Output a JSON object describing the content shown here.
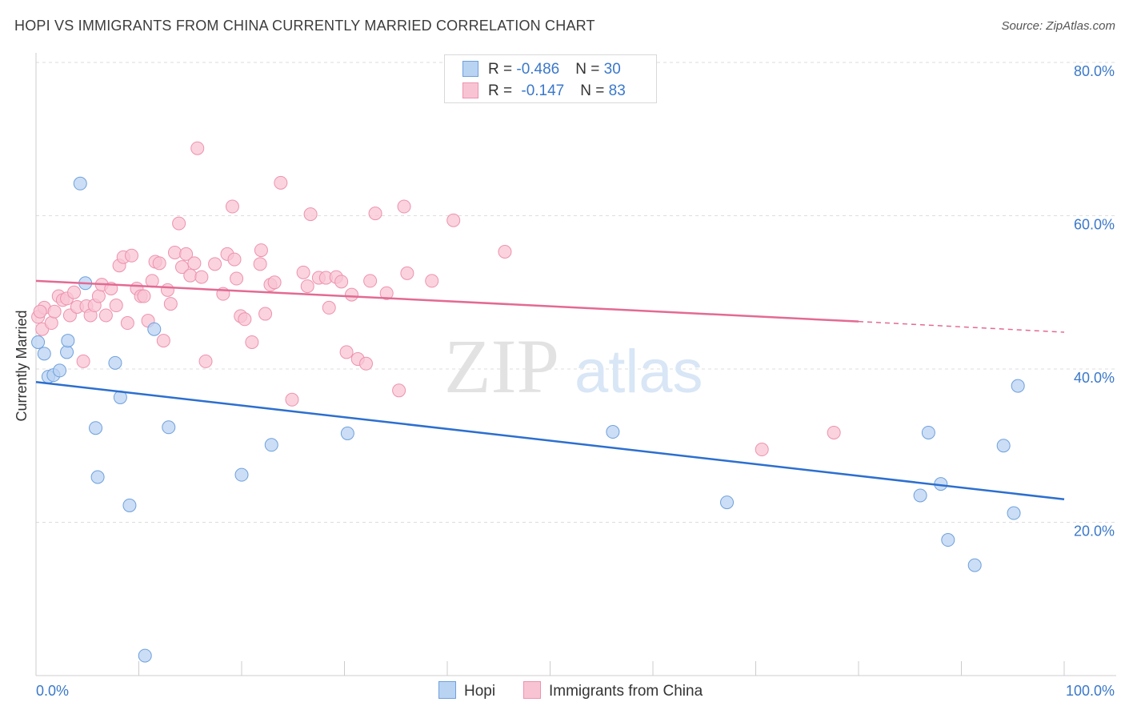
{
  "title": "HOPI VS IMMIGRANTS FROM CHINA CURRENTLY MARRIED CORRELATION CHART",
  "source": "Source: ZipAtlas.com",
  "watermark": {
    "zip": "ZIP",
    "atlas": "atlas"
  },
  "legend": {
    "rows": [
      {
        "r_label": "R = ",
        "r_value": "-0.486",
        "n_label": "N = ",
        "n_value": "30"
      },
      {
        "r_label": "R = ",
        "r_value": "-0.147",
        "n_label": "N = ",
        "n_value": "83"
      }
    ]
  },
  "bottom_legend": {
    "hopi": "Hopi",
    "china": "Immigrants from China"
  },
  "colors": {
    "hopi_fill": "#b9d3f3",
    "hopi_stroke": "#6fa0dc",
    "hopi_line": "#2c6fcf",
    "china_fill": "#f8c4d4",
    "china_stroke": "#ee92ad",
    "china_line": "#e36a93",
    "tick": "#3a78c9",
    "grid": "#dddddd"
  },
  "chart_data": {
    "type": "scatter",
    "title": "HOPI VS IMMIGRANTS FROM CHINA CURRENTLY MARRIED CORRELATION CHART",
    "xlabel": "",
    "ylabel": "Currently Married",
    "xlim": [
      0,
      100
    ],
    "ylim": [
      0,
      80
    ],
    "x_tick_labels": [
      "0.0%",
      "100.0%"
    ],
    "y_ticks": [
      20,
      40,
      60,
      80
    ],
    "y_tick_labels": [
      "20.0%",
      "40.0%",
      "60.0%",
      "80.0%"
    ],
    "series": [
      {
        "name": "Hopi",
        "r": -0.486,
        "n": 30,
        "trend": {
          "x0": 0,
          "y0": 38.3,
          "x1": 100,
          "y1": 23.0
        },
        "points": [
          [
            0.2,
            43.5
          ],
          [
            0.8,
            42.0
          ],
          [
            1.2,
            39.0
          ],
          [
            1.7,
            39.2
          ],
          [
            2.3,
            39.8
          ],
          [
            3.0,
            42.2
          ],
          [
            3.1,
            43.7
          ],
          [
            4.3,
            64.2
          ],
          [
            4.8,
            51.2
          ],
          [
            5.8,
            32.3
          ],
          [
            6.0,
            25.9
          ],
          [
            7.7,
            40.8
          ],
          [
            8.2,
            36.3
          ],
          [
            9.1,
            22.2
          ],
          [
            10.6,
            2.6
          ],
          [
            11.5,
            45.2
          ],
          [
            12.9,
            32.4
          ],
          [
            20.0,
            26.2
          ],
          [
            22.9,
            30.1
          ],
          [
            30.3,
            31.6
          ],
          [
            56.1,
            31.8
          ],
          [
            67.2,
            22.6
          ],
          [
            86.0,
            23.5
          ],
          [
            86.8,
            31.7
          ],
          [
            88.0,
            25.0
          ],
          [
            88.7,
            17.7
          ],
          [
            91.3,
            14.4
          ],
          [
            94.1,
            30.0
          ],
          [
            95.1,
            21.2
          ],
          [
            95.5,
            37.8
          ]
        ]
      },
      {
        "name": "Immigrants from China",
        "r": -0.147,
        "n": 83,
        "trend": {
          "x0": 0,
          "y0": 51.5,
          "x1": 80,
          "y1": 46.2,
          "dash_x1": 100,
          "dash_y1": 44.8
        },
        "points": [
          [
            0.2,
            46.8
          ],
          [
            0.6,
            45.2
          ],
          [
            0.8,
            48.0
          ],
          [
            1.5,
            46.0
          ],
          [
            1.8,
            47.5
          ],
          [
            2.2,
            49.5
          ],
          [
            2.6,
            49.0
          ],
          [
            3.0,
            49.2
          ],
          [
            3.3,
            47.0
          ],
          [
            3.7,
            50.0
          ],
          [
            4.0,
            48.1
          ],
          [
            4.6,
            41.0
          ],
          [
            4.9,
            48.2
          ],
          [
            5.3,
            47.0
          ],
          [
            5.7,
            48.3
          ],
          [
            6.1,
            49.5
          ],
          [
            6.4,
            51.0
          ],
          [
            6.8,
            47.0
          ],
          [
            7.3,
            50.5
          ],
          [
            7.8,
            48.3
          ],
          [
            8.1,
            53.5
          ],
          [
            8.5,
            54.6
          ],
          [
            8.9,
            46.0
          ],
          [
            9.3,
            54.8
          ],
          [
            9.8,
            50.5
          ],
          [
            10.2,
            49.5
          ],
          [
            10.5,
            49.5
          ],
          [
            10.9,
            46.3
          ],
          [
            11.3,
            51.5
          ],
          [
            11.6,
            54.0
          ],
          [
            12.0,
            53.8
          ],
          [
            12.4,
            43.7
          ],
          [
            12.8,
            50.3
          ],
          [
            13.1,
            48.5
          ],
          [
            13.5,
            55.2
          ],
          [
            13.9,
            59.0
          ],
          [
            14.2,
            53.3
          ],
          [
            14.6,
            55.0
          ],
          [
            15.0,
            52.2
          ],
          [
            15.4,
            53.8
          ],
          [
            15.7,
            68.8
          ],
          [
            16.1,
            52.0
          ],
          [
            16.5,
            41.0
          ],
          [
            17.4,
            53.7
          ],
          [
            18.2,
            49.8
          ],
          [
            18.6,
            55.0
          ],
          [
            19.1,
            61.2
          ],
          [
            19.3,
            54.3
          ],
          [
            19.5,
            51.8
          ],
          [
            19.9,
            46.9
          ],
          [
            20.3,
            46.5
          ],
          [
            21.0,
            43.5
          ],
          [
            21.8,
            53.7
          ],
          [
            21.9,
            55.5
          ],
          [
            22.3,
            47.2
          ],
          [
            22.8,
            51.0
          ],
          [
            23.2,
            51.3
          ],
          [
            23.8,
            64.3
          ],
          [
            24.9,
            36.0
          ],
          [
            26.0,
            52.6
          ],
          [
            26.4,
            50.8
          ],
          [
            26.7,
            60.2
          ],
          [
            27.5,
            51.9
          ],
          [
            28.2,
            51.9
          ],
          [
            28.5,
            48.0
          ],
          [
            29.2,
            52.0
          ],
          [
            29.7,
            51.4
          ],
          [
            30.2,
            42.2
          ],
          [
            30.7,
            49.7
          ],
          [
            31.3,
            41.3
          ],
          [
            32.1,
            40.7
          ],
          [
            32.5,
            51.5
          ],
          [
            33.0,
            60.3
          ],
          [
            34.1,
            49.9
          ],
          [
            35.3,
            37.2
          ],
          [
            35.8,
            61.2
          ],
          [
            36.1,
            52.5
          ],
          [
            38.5,
            51.5
          ],
          [
            40.6,
            59.4
          ],
          [
            45.6,
            55.3
          ],
          [
            70.6,
            29.5
          ],
          [
            77.6,
            31.7
          ],
          [
            0.4,
            47.5
          ]
        ]
      }
    ]
  }
}
